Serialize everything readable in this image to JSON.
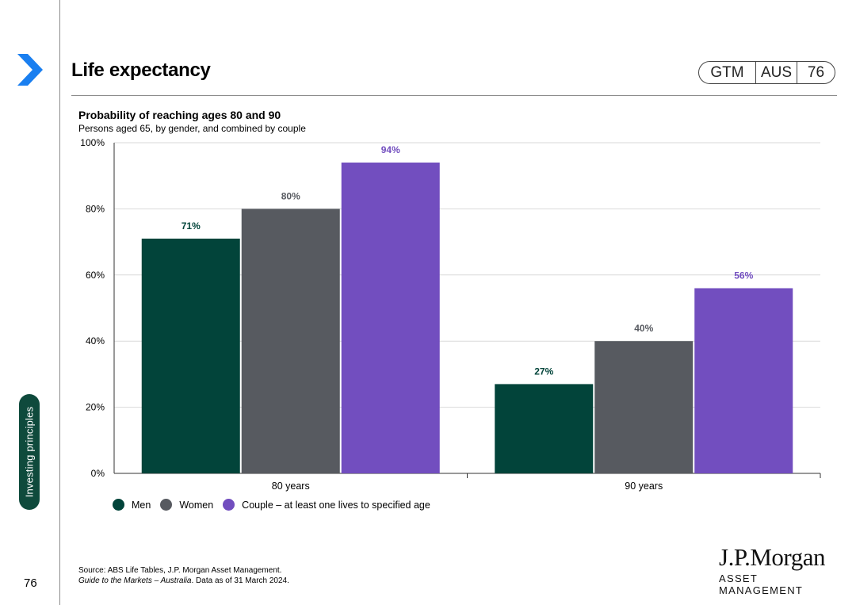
{
  "header": {
    "title": "Life expectancy",
    "badge": {
      "part1": "GTM",
      "part2": "AUS",
      "part3": "76"
    }
  },
  "sidebar": {
    "section_label": "Investing principles",
    "page_number": "76"
  },
  "colors": {
    "men": "#02443a",
    "women": "#575a60",
    "couple": "#724ebf",
    "sidebar_tab": "#0f4a3c",
    "logo_arrow": "#1a7ff0"
  },
  "chart_data": {
    "type": "bar",
    "title": "Probability of reaching ages 80 and 90",
    "subtitle": "Persons aged 65, by gender, and combined by couple",
    "categories": [
      "80 years",
      "90 years"
    ],
    "series": [
      {
        "name": "Men",
        "values": [
          71,
          27
        ],
        "labels": [
          "71%",
          "27%"
        ]
      },
      {
        "name": "Women",
        "values": [
          80,
          40
        ],
        "labels": [
          "80%",
          "40%"
        ]
      },
      {
        "name": "Couple – at least one lives to specified age",
        "values": [
          94,
          56
        ],
        "labels": [
          "94%",
          "56%"
        ]
      }
    ],
    "ylim": [
      0,
      100
    ],
    "yticks": [
      0,
      20,
      40,
      60,
      80,
      100
    ],
    "ytick_labels": [
      "0%",
      "20%",
      "40%",
      "60%",
      "80%",
      "100%"
    ],
    "grid": true,
    "legend_position": "bottom-left"
  },
  "footer": {
    "source_line": "Source: ABS Life Tables, J.P. Morgan Asset Management.",
    "guide_italic": "Guide to the Markets – Australia",
    "guide_rest": ". Data as of 31 March 2024.",
    "brand_name": "J.P.Morgan",
    "brand_sub": "ASSET MANAGEMENT"
  }
}
